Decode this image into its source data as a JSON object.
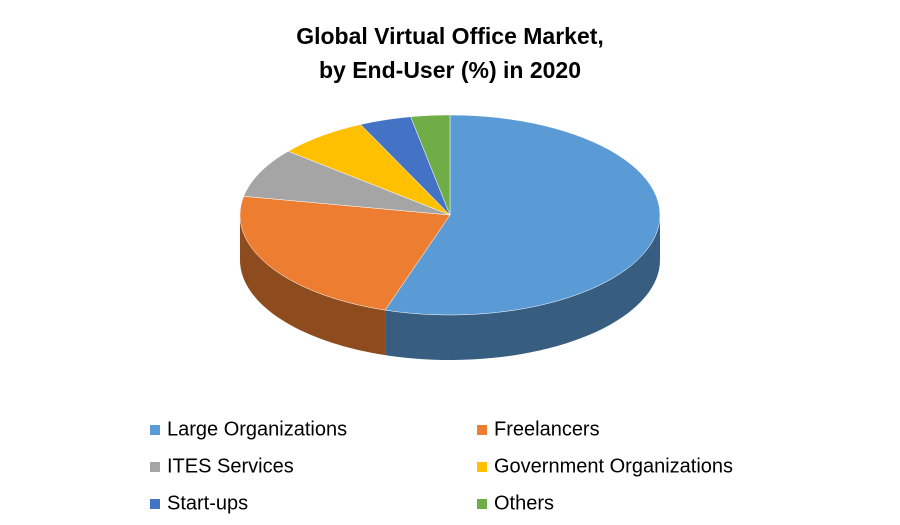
{
  "chart_data": {
    "type": "pie",
    "title": [
      "Global Virtual Office Market,",
      "by End-User (%) in 2020"
    ],
    "categories": [
      "Large Organizations",
      "Freelancers",
      "ITES Services",
      "Government Organizations",
      "Start-ups",
      "Others"
    ],
    "values": [
      55,
      23,
      8,
      7,
      4,
      3
    ],
    "colors": [
      "#5b9bd5",
      "#ed7d31",
      "#a5a5a5",
      "#ffc000",
      "#4472c4",
      "#70ad47"
    ]
  }
}
